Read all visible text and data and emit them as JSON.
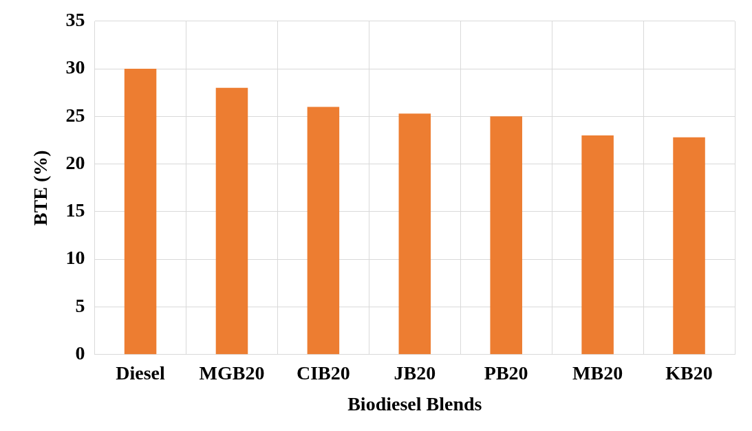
{
  "chart_data": {
    "type": "bar",
    "xlabel": "Biodiesel Blends",
    "ylabel": "BTE (%)",
    "categories": [
      "Diesel",
      "MGB20",
      "CIB20",
      "JB20",
      "PB20",
      "MB20",
      "KB20"
    ],
    "values": [
      30,
      28,
      26,
      25.3,
      25,
      23,
      22.8
    ],
    "color": "#ed7d31",
    "ylim": [
      0,
      35
    ],
    "yticks": [
      0,
      5,
      10,
      15,
      20,
      25,
      30,
      35
    ],
    "grid": true
  }
}
